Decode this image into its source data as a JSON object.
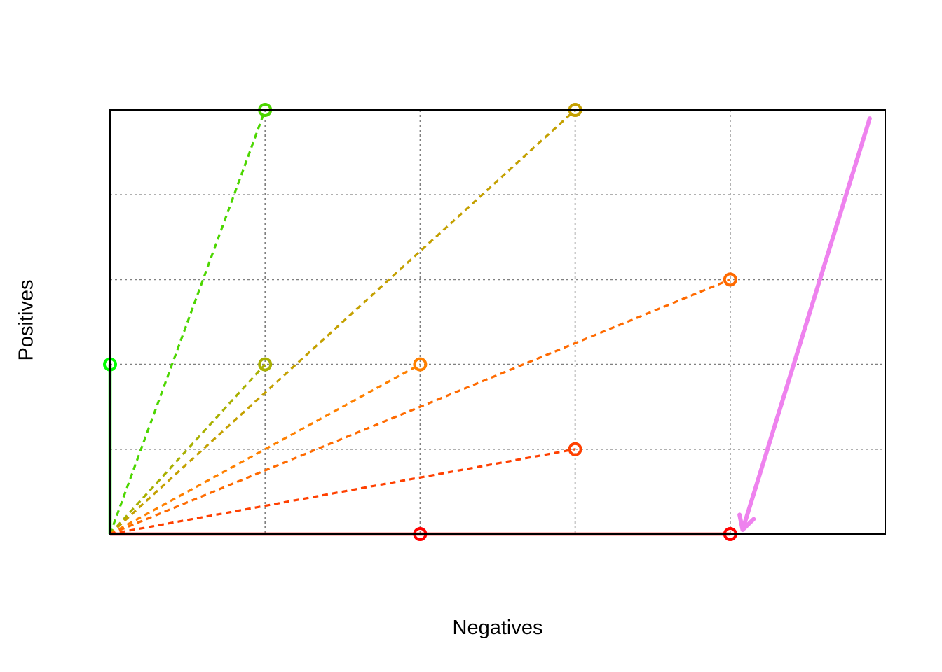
{
  "chart_data": {
    "type": "line",
    "title": "",
    "xlabel": "Negatives",
    "ylabel": "Positives",
    "xlim": [
      0,
      5
    ],
    "ylim": [
      0,
      5
    ],
    "grid": true,
    "grid_x": [
      1,
      2,
      3,
      4
    ],
    "grid_y": [
      1,
      2,
      3,
      4
    ],
    "series": [
      {
        "color": "#00ff00",
        "line_style": "solid",
        "points": [
          [
            0,
            0
          ],
          [
            0,
            2
          ]
        ]
      },
      {
        "color": "#4cd600",
        "line_style": "dashed",
        "points": [
          [
            0,
            0
          ],
          [
            1,
            5
          ]
        ]
      },
      {
        "color": "#a8b000",
        "line_style": "dashed",
        "points": [
          [
            0,
            0
          ],
          [
            1,
            2
          ]
        ]
      },
      {
        "color": "#c4a000",
        "line_style": "dashed",
        "points": [
          [
            0,
            0
          ],
          [
            3,
            5
          ]
        ]
      },
      {
        "color": "#ff8000",
        "line_style": "dashed",
        "points": [
          [
            0,
            0
          ],
          [
            2,
            2
          ]
        ]
      },
      {
        "color": "#ff6a00",
        "line_style": "dashed",
        "points": [
          [
            0,
            0
          ],
          [
            4,
            3
          ]
        ]
      },
      {
        "color": "#ff4000",
        "line_style": "dashed",
        "points": [
          [
            0,
            0
          ],
          [
            3,
            1
          ]
        ]
      },
      {
        "color": "#ff0000",
        "line_style": "solid",
        "points": [
          [
            0,
            0
          ],
          [
            2,
            0
          ],
          [
            4,
            0
          ]
        ]
      }
    ],
    "annotations": [
      {
        "type": "arrow",
        "color": "#ee82ee",
        "from": [
          4.9,
          4.9
        ],
        "to": [
          4.08,
          0.05
        ]
      }
    ]
  }
}
